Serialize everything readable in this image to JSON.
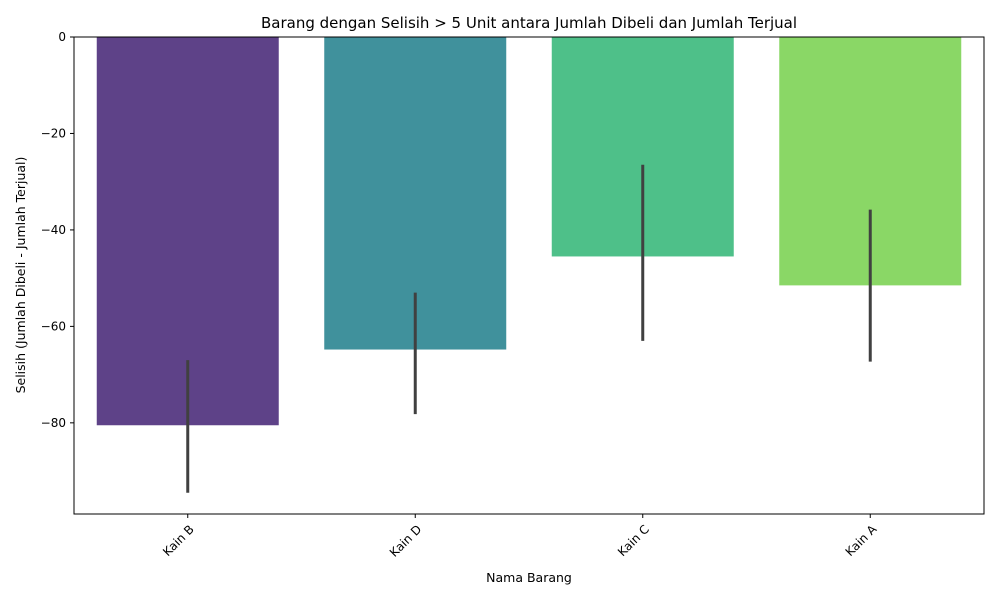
{
  "chart_data": {
    "type": "bar",
    "title": "Barang dengan Selisih > 5 Unit antara Jumlah Dibeli dan Jumlah Terjual",
    "xlabel": "Nama Barang",
    "ylabel": "Selisih (Jumlah Dibeli - Jumlah Terjual)",
    "categories": [
      "Kain B",
      "Kain D",
      "Kain C",
      "Kain A"
    ],
    "values": [
      -80.5,
      -64.8,
      -45.5,
      -51.5
    ],
    "error_low": [
      -94.5,
      -78.2,
      -63.0,
      -67.3
    ],
    "error_high": [
      -67.0,
      -53.0,
      -26.5,
      -35.8
    ],
    "colors": [
      "#482878",
      "#26828e",
      "#35b779",
      "#7ad151"
    ],
    "bar_opacity": 0.88,
    "error_color": "#404040",
    "ylim": [
      -98.9,
      0
    ],
    "yticks": [
      0,
      -20,
      -40,
      -60,
      -80
    ],
    "ytick_labels": [
      "0",
      "−20",
      "−40",
      "−60",
      "−80"
    ],
    "xtick_rotation": 45,
    "grid": false
  }
}
